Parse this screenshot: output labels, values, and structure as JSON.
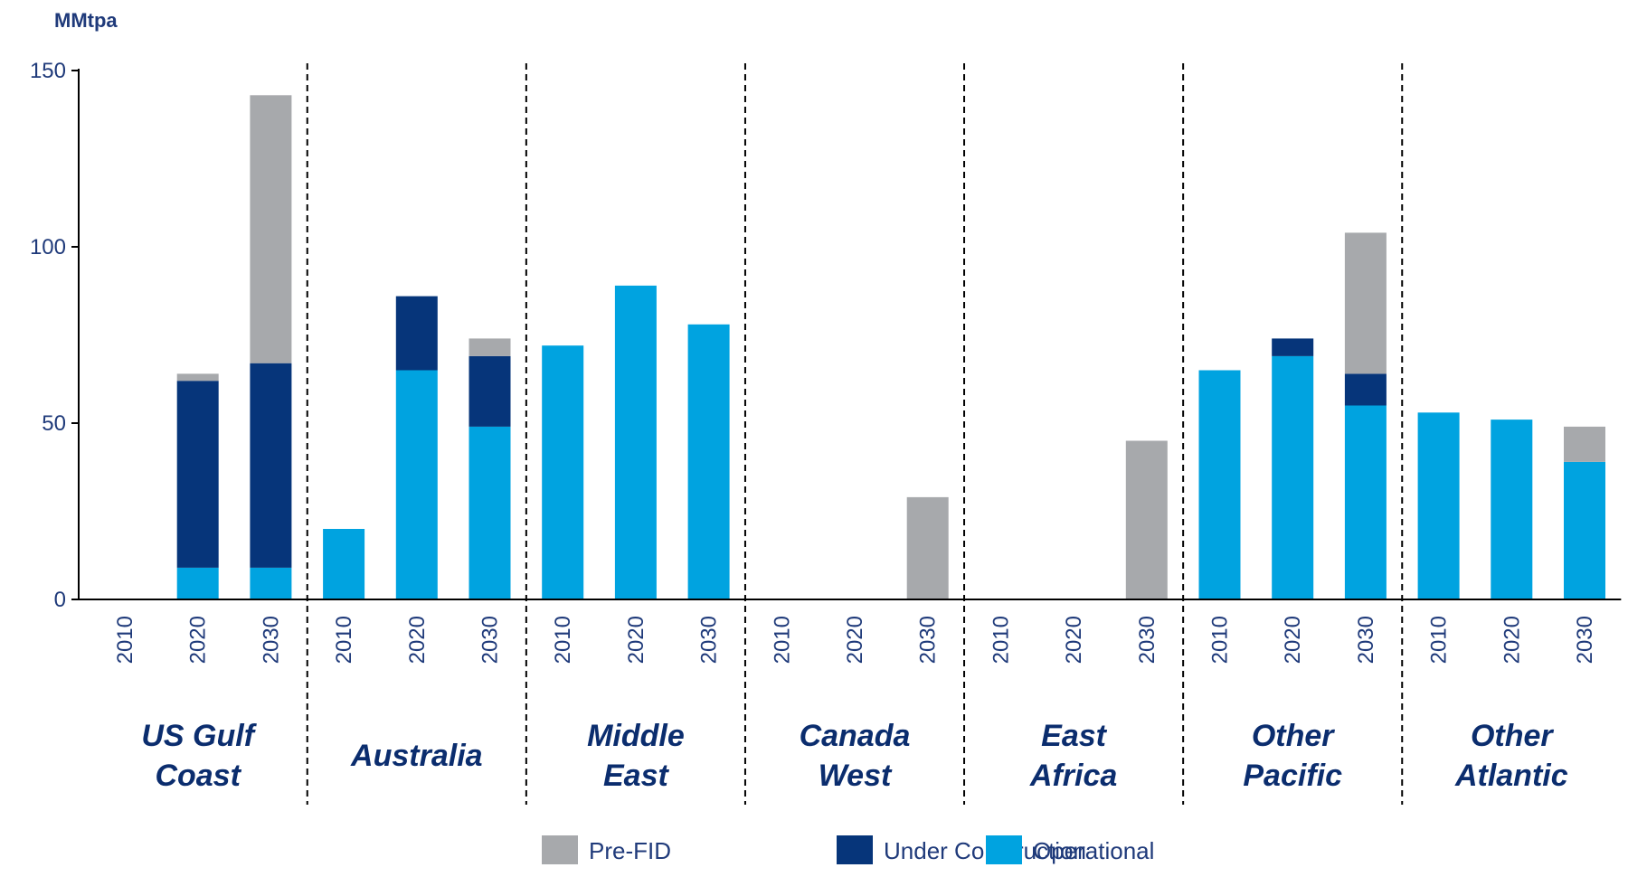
{
  "chart_data": {
    "type": "bar",
    "stacked": true,
    "ylabel": "MMtpa",
    "ylim": [
      0,
      150
    ],
    "yticks": [
      0,
      50,
      100,
      150
    ],
    "grid": false,
    "legend_position": "bottom",
    "groups": [
      "US Gulf Coast",
      "Australia",
      "Middle East",
      "Canada West",
      "East Africa",
      "Other Pacific",
      "Other Atlantic"
    ],
    "group_label_lines": [
      [
        "US Gulf",
        "Coast"
      ],
      [
        "Australia"
      ],
      [
        "Middle",
        "East"
      ],
      [
        "Canada",
        "West"
      ],
      [
        "East",
        "Africa"
      ],
      [
        "Other",
        "Pacific"
      ],
      [
        "Other",
        "Atlantic"
      ]
    ],
    "years": [
      "2010",
      "2020",
      "2030"
    ],
    "series": [
      {
        "name": "Operational",
        "color": "#00a3e0",
        "values": [
          [
            0,
            9,
            9
          ],
          [
            20,
            65,
            49
          ],
          [
            72,
            89,
            78
          ],
          [
            0,
            0,
            0
          ],
          [
            0,
            0,
            0
          ],
          [
            65,
            69,
            55
          ],
          [
            53,
            51,
            39
          ]
        ]
      },
      {
        "name": "Under Construction",
        "color": "#06357a",
        "values": [
          [
            0,
            53,
            58
          ],
          [
            0,
            21,
            20
          ],
          [
            0,
            0,
            0
          ],
          [
            0,
            0,
            0
          ],
          [
            0,
            0,
            0
          ],
          [
            0,
            5,
            9
          ],
          [
            0,
            0,
            0
          ]
        ]
      },
      {
        "name": "Pre-FID",
        "color": "#a7a9ac",
        "values": [
          [
            0,
            2,
            76
          ],
          [
            0,
            0,
            5
          ],
          [
            0,
            0,
            0
          ],
          [
            0,
            0,
            29
          ],
          [
            0,
            0,
            45
          ],
          [
            0,
            0,
            40
          ],
          [
            0,
            0,
            10
          ]
        ]
      }
    ],
    "legend_order": [
      "Pre-FID",
      "Under Construction",
      "Operational"
    ]
  }
}
